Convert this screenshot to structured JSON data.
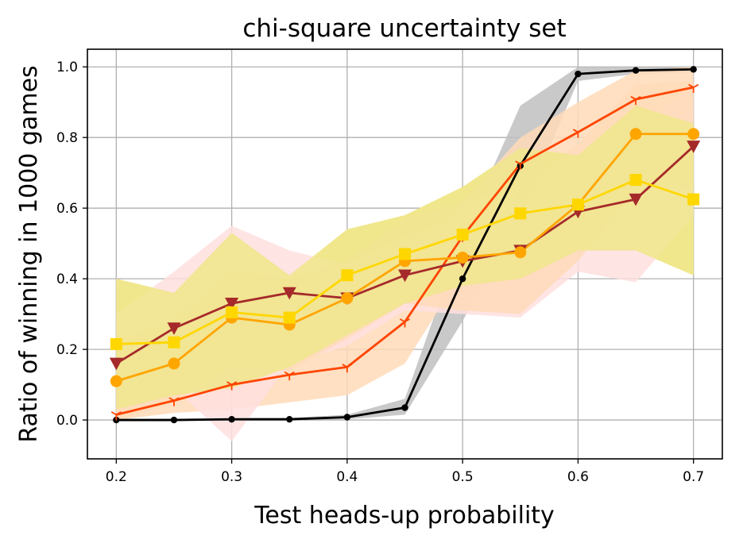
{
  "chart_data": {
    "type": "line",
    "title": "chi-square uncertainty set",
    "xlabel": "Test heads-up probability",
    "ylabel": "Ratio of winning in 1000 games",
    "xlim": [
      0.175,
      0.725
    ],
    "ylim": [
      -0.11,
      1.05
    ],
    "grid": true,
    "x": [
      0.2,
      0.25,
      0.3,
      0.35,
      0.4,
      0.45,
      0.5,
      0.55,
      0.6,
      0.65,
      0.7
    ],
    "xticks": [
      0.2,
      0.3,
      0.4,
      0.5,
      0.6,
      0.7
    ],
    "xtick_labels": [
      "0.2",
      "0.3",
      "0.4",
      "0.5",
      "0.6",
      "0.7"
    ],
    "yticks": [
      0.0,
      0.2,
      0.4,
      0.6,
      0.8,
      1.0
    ],
    "ytick_labels": [
      "0.0",
      "0.2",
      "0.4",
      "0.6",
      "0.8",
      "1.0"
    ],
    "series": [
      {
        "color": "#f0e68c",
        "marker": "none",
        "band_only": true,
        "upper": [
          0.4,
          0.36,
          0.53,
          0.41,
          0.54,
          0.58,
          0.66,
          0.77,
          0.75,
          0.89,
          0.84
        ],
        "lower": [
          0.03,
          0.07,
          0.09,
          0.15,
          0.24,
          0.33,
          0.38,
          0.4,
          0.48,
          0.48,
          0.41
        ]
      },
      {
        "color": "#000000",
        "marker": "dot",
        "values": [
          0.0,
          0.0,
          0.002,
          0.002,
          0.008,
          0.035,
          0.4,
          0.72,
          0.98,
          0.99,
          0.993
        ],
        "upper": [
          0.003,
          0.003,
          0.006,
          0.006,
          0.015,
          0.06,
          0.52,
          0.89,
          1.0,
          1.0,
          1.0
        ],
        "lower": [
          0.0,
          0.0,
          0.0,
          0.0,
          0.002,
          0.015,
          0.28,
          0.58,
          0.96,
          0.98,
          0.985
        ],
        "band_color": "#bfbfbf"
      },
      {
        "color": "#ff4500",
        "marker": "tri_down",
        "values": [
          0.015,
          0.055,
          0.1,
          0.128,
          0.15,
          0.278,
          0.52,
          0.725,
          0.815,
          0.908,
          0.942
        ],
        "upper": [
          0.03,
          0.1,
          0.19,
          0.21,
          0.23,
          0.4,
          0.62,
          0.8,
          0.9,
          0.99,
          1.0
        ],
        "lower": [
          0.0,
          0.02,
          0.03,
          0.05,
          0.07,
          0.16,
          0.42,
          0.65,
          0.73,
          0.82,
          0.88
        ],
        "band_color": "#ffdab9"
      },
      {
        "color": "#a52a2a",
        "marker": "triangle_down",
        "values": [
          0.16,
          0.26,
          0.33,
          0.36,
          0.345,
          0.41,
          0.45,
          0.48,
          0.59,
          0.625,
          0.775
        ],
        "upper": [
          0.3,
          0.42,
          0.55,
          0.48,
          0.44,
          0.52,
          0.58,
          0.62,
          0.78,
          0.82,
          0.95
        ],
        "lower": [
          0.02,
          0.09,
          -0.06,
          0.16,
          0.21,
          0.31,
          0.3,
          0.29,
          0.42,
          0.39,
          0.58
        ],
        "band_color": "#ffdfdf"
      },
      {
        "color": "#ffa500",
        "marker": "circle",
        "values": [
          0.11,
          0.16,
          0.29,
          0.27,
          0.345,
          0.45,
          0.46,
          0.475,
          0.61,
          0.81,
          0.81
        ],
        "upper": [
          0.22,
          0.28,
          0.42,
          0.4,
          0.45,
          0.57,
          0.62,
          0.66,
          0.78,
          0.95,
          0.96
        ],
        "lower": [
          0.0,
          0.05,
          0.15,
          0.14,
          0.23,
          0.33,
          0.31,
          0.3,
          0.45,
          0.66,
          0.66
        ],
        "band_color": "#ffdab9"
      },
      {
        "color": "#ffd700",
        "marker": "square",
        "values": [
          0.215,
          0.22,
          0.305,
          0.29,
          0.41,
          0.47,
          0.525,
          0.585,
          0.61,
          0.68,
          0.625
        ],
        "upper": [
          0.4,
          0.36,
          0.53,
          0.41,
          0.54,
          0.58,
          0.66,
          0.77,
          0.75,
          0.89,
          0.84
        ],
        "lower": [
          0.03,
          0.07,
          0.09,
          0.15,
          0.24,
          0.33,
          0.38,
          0.4,
          0.48,
          0.48,
          0.41
        ],
        "band_color": "#f0e68c"
      }
    ]
  }
}
